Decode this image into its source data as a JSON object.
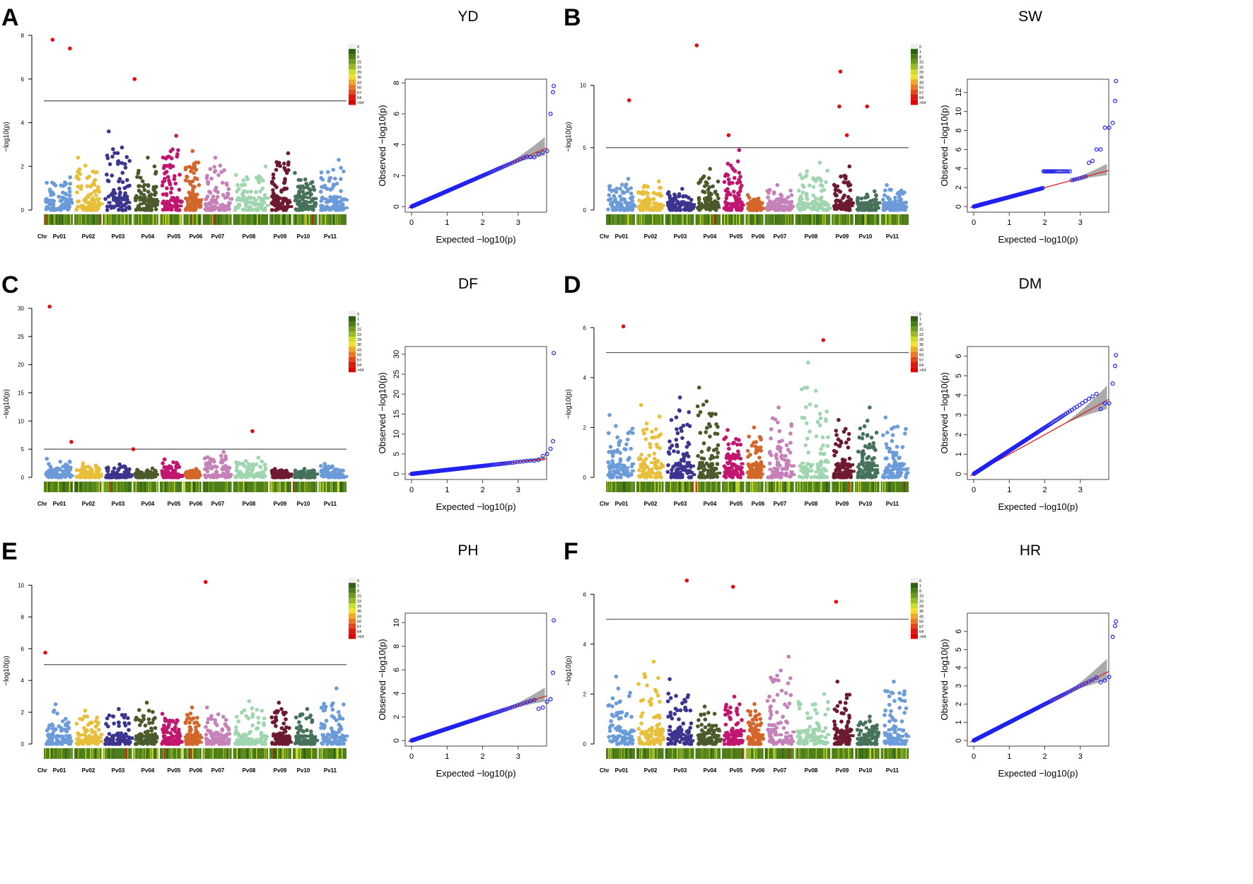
{
  "chromosomes": [
    "Pv01",
    "Pv02",
    "Pv03",
    "Pv04",
    "Pv05",
    "Pv06",
    "Pv07",
    "Pv08",
    "Pv09",
    "Pv10",
    "Pv11"
  ],
  "chr_label": "Chr",
  "chr_colors": [
    "#6b9bd9",
    "#e8bf3a",
    "#3c358f",
    "#4b5a2b",
    "#c1166f",
    "#d3662a",
    "#c581b8",
    "#9fd5af",
    "#6d1a31",
    "#46725b",
    "#6b9bd9"
  ],
  "sig_color": "#dd1111",
  "qq_color": "#2222ee",
  "legend_labels": [
    "0",
    "1",
    "8",
    "15",
    "22",
    "29",
    "36",
    "43",
    "50",
    "57",
    "64",
    ">64"
  ],
  "legend_colors": [
    "#eeeeee",
    "#2f5f14",
    "#4a7d1a",
    "#6e9a20",
    "#9ab828",
    "#cddd2e",
    "#f2e030",
    "#eeaa2a",
    "#e8782a",
    "#e2481e",
    "#dd1a12",
    "#dd0000"
  ],
  "manhattan_ylabel": "−log10(p)",
  "qq_xlabel": "Expected −log10(p)",
  "qq_ylabel": "Observed −log10(p)",
  "chart_data": [
    {
      "panel": "A",
      "title": "YD",
      "type": "scatter",
      "threshold": 5,
      "ylim": [
        0,
        8
      ],
      "yticks": [
        0,
        2,
        4,
        6,
        8
      ],
      "chr_max": [
        1.5,
        2.4,
        3.6,
        2.4,
        3.4,
        2.7,
        2.4,
        2.0,
        2.6,
        1.7,
        2.3
      ],
      "significant": [
        {
          "chr": "Pv01",
          "pos": 0.3,
          "y": 7.8
        },
        {
          "chr": "Pv01",
          "pos": 0.9,
          "y": 7.4
        },
        {
          "chr": "Pv04",
          "pos": 0.05,
          "y": 6.0
        }
      ],
      "qq": {
        "ylim": [
          0,
          8
        ],
        "yticks": [
          0,
          2,
          4,
          6,
          8
        ],
        "xticks": [
          0,
          1,
          2,
          3
        ],
        "slope": 1.0,
        "top": [
          7.8,
          7.4,
          6.0,
          3.6,
          3.5,
          3.4,
          3.2,
          3.2
        ]
      }
    },
    {
      "panel": "B",
      "title": "SW",
      "type": "scatter",
      "threshold": 5,
      "ylim": [
        0,
        14
      ],
      "yticks": [
        0,
        5,
        10
      ],
      "chr_max": [
        2.5,
        2.3,
        1.7,
        3.3,
        4.8,
        1.2,
        2.0,
        3.8,
        3.5,
        1.5,
        2.0
      ],
      "significant": [
        {
          "chr": "Pv01",
          "pos": 0.8,
          "y": 8.8
        },
        {
          "chr": "Pv04",
          "pos": 0.05,
          "y": 13.2
        },
        {
          "chr": "Pv05",
          "pos": 0.3,
          "y": 6.0
        },
        {
          "chr": "Pv09",
          "pos": 0.4,
          "y": 11.1
        },
        {
          "chr": "Pv09",
          "pos": 0.35,
          "y": 8.3
        },
        {
          "chr": "Pv09",
          "pos": 0.7,
          "y": 6.0
        },
        {
          "chr": "Pv10",
          "pos": 0.5,
          "y": 8.3
        }
      ],
      "qq": {
        "ylim": [
          0,
          13
        ],
        "yticks": [
          0,
          2,
          4,
          6,
          8,
          10,
          12
        ],
        "xticks": [
          0,
          1,
          2,
          3
        ],
        "slope": 1.0,
        "plateau": 3.7,
        "top": [
          13.2,
          11.1,
          8.8,
          8.3,
          8.3,
          6.0,
          6.0,
          4.8,
          4.6
        ]
      }
    },
    {
      "panel": "C",
      "title": "DF",
      "type": "scatter",
      "threshold": 5,
      "ylim": [
        0,
        31
      ],
      "yticks": [
        0,
        5,
        10,
        15,
        20,
        25,
        30
      ],
      "chr_max": [
        3.3,
        2.5,
        2.3,
        1.6,
        3.2,
        1.5,
        4.5,
        3.5,
        1.5,
        1.5,
        2.4
      ],
      "significant": [
        {
          "chr": "Pv01",
          "pos": 0.2,
          "y": 30.3
        },
        {
          "chr": "Pv01",
          "pos": 0.95,
          "y": 6.3
        },
        {
          "chr": "Pv04",
          "pos": 0.0,
          "y": 5.0
        },
        {
          "chr": "Pv08",
          "pos": 0.55,
          "y": 8.2
        }
      ],
      "qq": {
        "ylim": [
          0,
          31
        ],
        "yticks": [
          0,
          5,
          10,
          15,
          20,
          25,
          30
        ],
        "xticks": [
          0,
          1,
          2,
          3
        ],
        "slope": 1.0,
        "top": [
          30.3,
          8.2,
          6.3,
          5.0,
          4.5,
          3.5,
          3.3
        ]
      }
    },
    {
      "panel": "D",
      "title": "DM",
      "type": "scatter",
      "threshold": 5,
      "ylim": [
        0,
        7
      ],
      "yticks": [
        0,
        2,
        4,
        6
      ],
      "chr_max": [
        2.5,
        2.9,
        3.2,
        3.6,
        1.9,
        2.0,
        2.8,
        4.6,
        2.3,
        2.8,
        2.4
      ],
      "significant": [
        {
          "chr": "Pv01",
          "pos": 0.6,
          "y": 6.05
        },
        {
          "chr": "Pv08",
          "pos": 0.8,
          "y": 5.5
        }
      ],
      "qq": {
        "ylim": [
          0,
          6.3
        ],
        "yticks": [
          0,
          1,
          2,
          3,
          4,
          5,
          6
        ],
        "xticks": [
          0,
          1,
          2,
          3
        ],
        "slope": 1.18,
        "top": [
          6.05,
          5.5,
          4.6,
          3.6,
          3.6,
          3.3
        ]
      }
    },
    {
      "panel": "E",
      "title": "PH",
      "type": "scatter",
      "threshold": 5,
      "ylim": [
        0,
        11
      ],
      "yticks": [
        0,
        2,
        4,
        6,
        8,
        10
      ],
      "chr_max": [
        2.5,
        2.1,
        2.2,
        2.6,
        1.9,
        2.3,
        2.3,
        2.7,
        2.6,
        2.2,
        3.5
      ],
      "significant": [
        {
          "chr": "Pv01",
          "pos": 0.05,
          "y": 5.75
        },
        {
          "chr": "Pv07",
          "pos": 0.1,
          "y": 10.2
        }
      ],
      "qq": {
        "ylim": [
          0,
          10.5
        ],
        "yticks": [
          0,
          2,
          4,
          6,
          8,
          10
        ],
        "xticks": [
          0,
          1,
          2,
          3
        ],
        "slope": 1.0,
        "top": [
          10.2,
          5.75,
          3.5,
          3.3,
          2.8,
          2.7
        ]
      }
    },
    {
      "panel": "F",
      "title": "HR",
      "type": "scatter",
      "threshold": 5,
      "ylim": [
        0,
        7
      ],
      "yticks": [
        0,
        2,
        4,
        6
      ],
      "chr_max": [
        2.7,
        3.3,
        2.6,
        1.5,
        1.9,
        1.6,
        3.5,
        2.0,
        2.5,
        1.1,
        2.5
      ],
      "significant": [
        {
          "chr": "Pv03",
          "pos": 0.75,
          "y": 6.55
        },
        {
          "chr": "Pv05",
          "pos": 0.5,
          "y": 6.3
        },
        {
          "chr": "Pv09",
          "pos": 0.2,
          "y": 5.7
        }
      ],
      "qq": {
        "ylim": [
          0,
          6.8
        ],
        "yticks": [
          0,
          1,
          2,
          3,
          4,
          5,
          6
        ],
        "xticks": [
          0,
          1,
          2,
          3
        ],
        "slope": 1.0,
        "top": [
          6.55,
          6.3,
          5.7,
          3.5,
          3.3,
          3.2
        ]
      }
    }
  ]
}
